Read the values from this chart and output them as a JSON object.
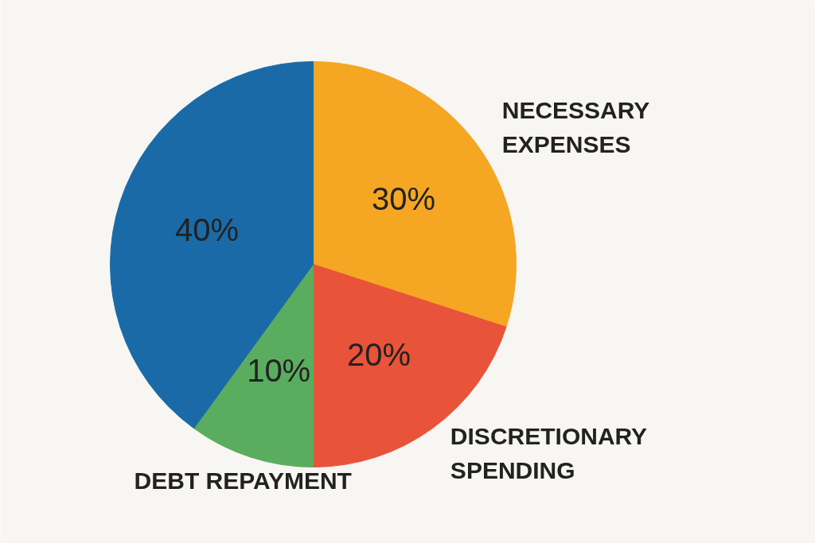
{
  "chart_data": {
    "type": "pie",
    "categories": [
      "NECESSARY\nEXPENSES",
      "DISCRETIONARY\nSPENDING",
      "DEBT REPAYMENT",
      null
    ],
    "values": [
      30,
      20,
      10,
      40
    ],
    "value_labels": [
      "30%",
      "20%",
      "10%",
      "40%"
    ],
    "colors": [
      "#f5a623",
      "#e8533a",
      "#5aad5e",
      "#1a6aa8"
    ]
  }
}
